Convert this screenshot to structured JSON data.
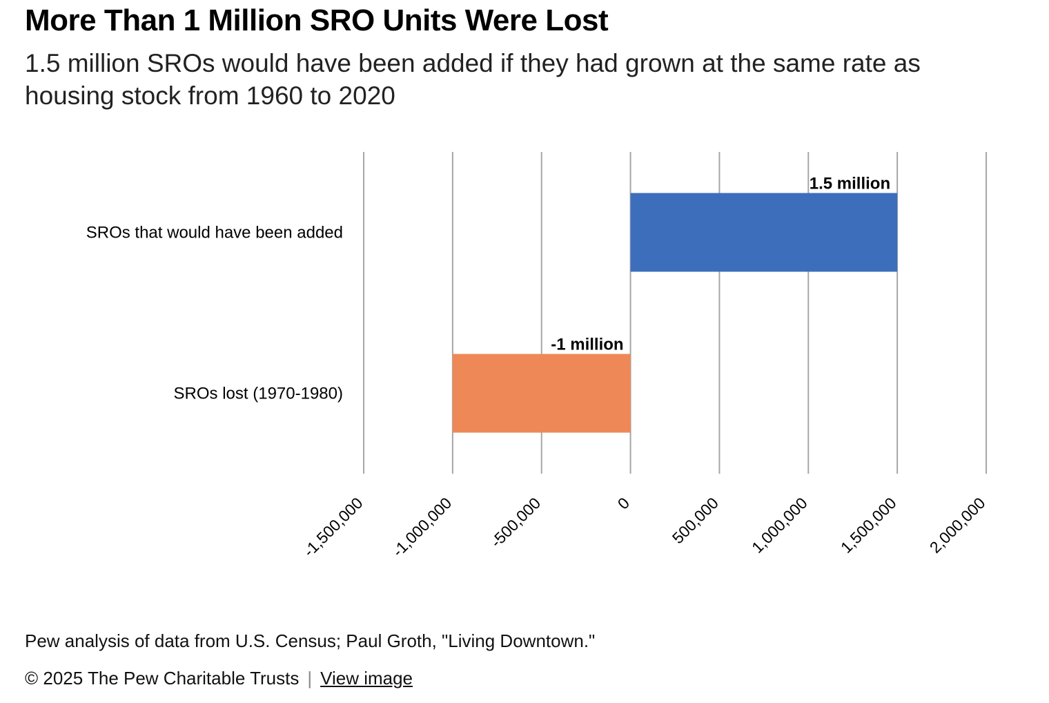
{
  "header": {
    "title": "More Than 1 Million SRO Units Were Lost",
    "subtitle": "1.5 million SROs would have been added if they had grown at the same rate as housing stock from 1960 to 2020"
  },
  "chart_data": {
    "type": "bar",
    "orientation": "horizontal",
    "categories": [
      "SROs that would have been added",
      "SROs lost (1970-1980)"
    ],
    "values": [
      1500000,
      -1000000
    ],
    "data_labels": [
      "1.5 million",
      "-1 million"
    ],
    "bar_colors": [
      "#3D6EBC",
      "#EE8957"
    ],
    "xlim": [
      -1500000,
      2000000
    ],
    "x_ticks": [
      -1500000,
      -1000000,
      -500000,
      0,
      500000,
      1000000,
      1500000,
      2000000
    ],
    "x_tick_labels": [
      "-1,500,000",
      "-1,000,000",
      "-500,000",
      "0",
      "500,000",
      "1,000,000",
      "1,500,000",
      "2,000,000"
    ],
    "title": "",
    "xlabel": "",
    "ylabel": "",
    "grid": "vertical",
    "legend": "none"
  },
  "footer": {
    "source": "Pew analysis of data from U.S. Census; Paul Groth, \"Living Downtown.\"",
    "copyright": "© 2025 The Pew Charitable Trusts",
    "separator": "|",
    "view_image_label": "View image"
  }
}
